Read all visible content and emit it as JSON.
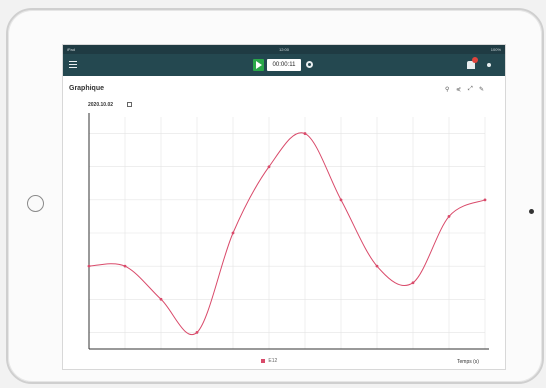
{
  "colors": {
    "toolbar": "#244850",
    "statusbar": "#1f3b43",
    "play": "#2aa84a",
    "series": "#d94a6a",
    "grid": "#e4e4e4"
  },
  "statusbar": {
    "left": "iPad",
    "center": "12:00",
    "right": "100%"
  },
  "toolbar": {
    "menu_icon": "menu-icon",
    "play_icon": "play-icon",
    "time_display": "00:00:11",
    "settings_icon": "gear-icon",
    "notify_icon": "bell-icon",
    "more_icon": "more-icon"
  },
  "panel": {
    "title": "Graphique",
    "tools": [
      "search-icon",
      "share-icon",
      "expand-icon",
      "edit-icon"
    ],
    "date": "2020.10.02"
  },
  "legend": {
    "items": [
      "",
      "E12",
      ""
    ]
  },
  "chart_data": {
    "type": "line",
    "xlabel": "Temps (s)",
    "ylabel": "",
    "x": [
      0,
      1,
      2,
      3,
      4,
      5,
      6,
      7,
      8,
      9,
      10,
      11
    ],
    "series": [
      {
        "name": "E12",
        "values": [
          0.0,
          0.0,
          -1.0,
          -2.0,
          1.0,
          3.0,
          4.0,
          2.0,
          0.0,
          -0.5,
          1.5,
          2.0
        ]
      }
    ],
    "xlim": [
      0,
      11
    ],
    "ylim": [
      -2.5,
      4.5
    ],
    "grid": true,
    "legend": "bottom-center"
  }
}
